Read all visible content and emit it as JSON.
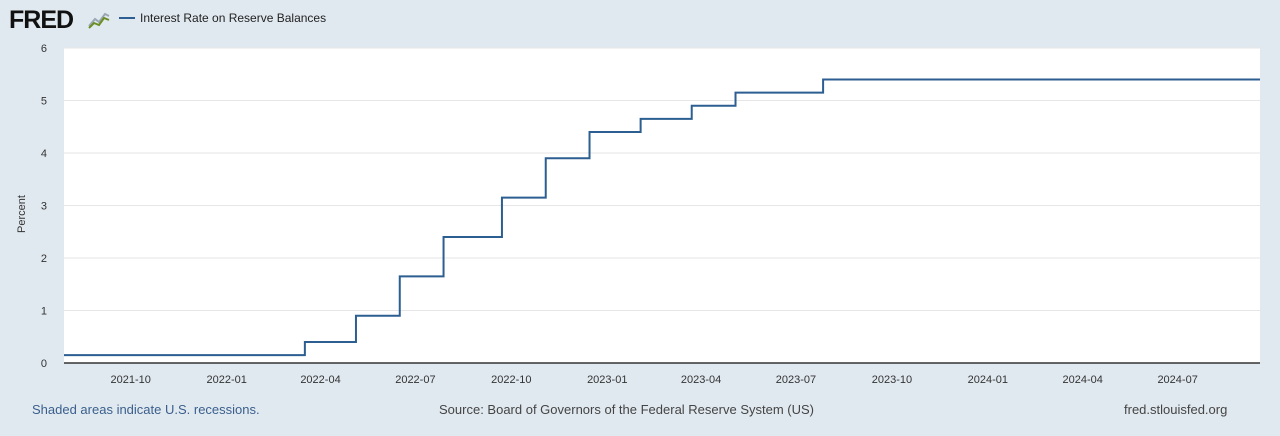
{
  "header": {
    "logo_text": "FRED",
    "legend_label": "Interest Rate on Reserve Balances",
    "series_color": "#2c5e91"
  },
  "chart_data": {
    "type": "line",
    "title": "Interest Rate on Reserve Balances",
    "xlabel": "",
    "ylabel": "Percent",
    "ylim": [
      0,
      6
    ],
    "xlim": [
      "2021-07-29",
      "2024-09-18"
    ],
    "y_ticks": [
      "0",
      "1",
      "2",
      "3",
      "4",
      "5",
      "6"
    ],
    "x_ticks": [
      "2021-10",
      "2022-01",
      "2022-04",
      "2022-07",
      "2022-10",
      "2023-01",
      "2023-04",
      "2023-07",
      "2023-10",
      "2024-01",
      "2024-04",
      "2024-07"
    ],
    "grid": true,
    "legend": "top-left",
    "series": [
      {
        "name": "Interest Rate on Reserve Balances",
        "step": true,
        "points": [
          {
            "date": "2021-07-29",
            "value": 0.15
          },
          {
            "date": "2022-03-17",
            "value": 0.4
          },
          {
            "date": "2022-05-05",
            "value": 0.9
          },
          {
            "date": "2022-06-16",
            "value": 1.65
          },
          {
            "date": "2022-07-28",
            "value": 2.4
          },
          {
            "date": "2022-09-22",
            "value": 3.15
          },
          {
            "date": "2022-11-03",
            "value": 3.9
          },
          {
            "date": "2022-12-15",
            "value": 4.4
          },
          {
            "date": "2023-02-02",
            "value": 4.65
          },
          {
            "date": "2023-03-23",
            "value": 4.9
          },
          {
            "date": "2023-05-04",
            "value": 5.15
          },
          {
            "date": "2023-07-27",
            "value": 5.4
          },
          {
            "date": "2024-09-18",
            "value": 5.4
          }
        ]
      }
    ]
  },
  "footer": {
    "recession_note": "Shaded areas indicate U.S. recessions.",
    "source": "Source: Board of Governors of the Federal Reserve System (US)",
    "site": "fred.stlouisfed.org"
  }
}
